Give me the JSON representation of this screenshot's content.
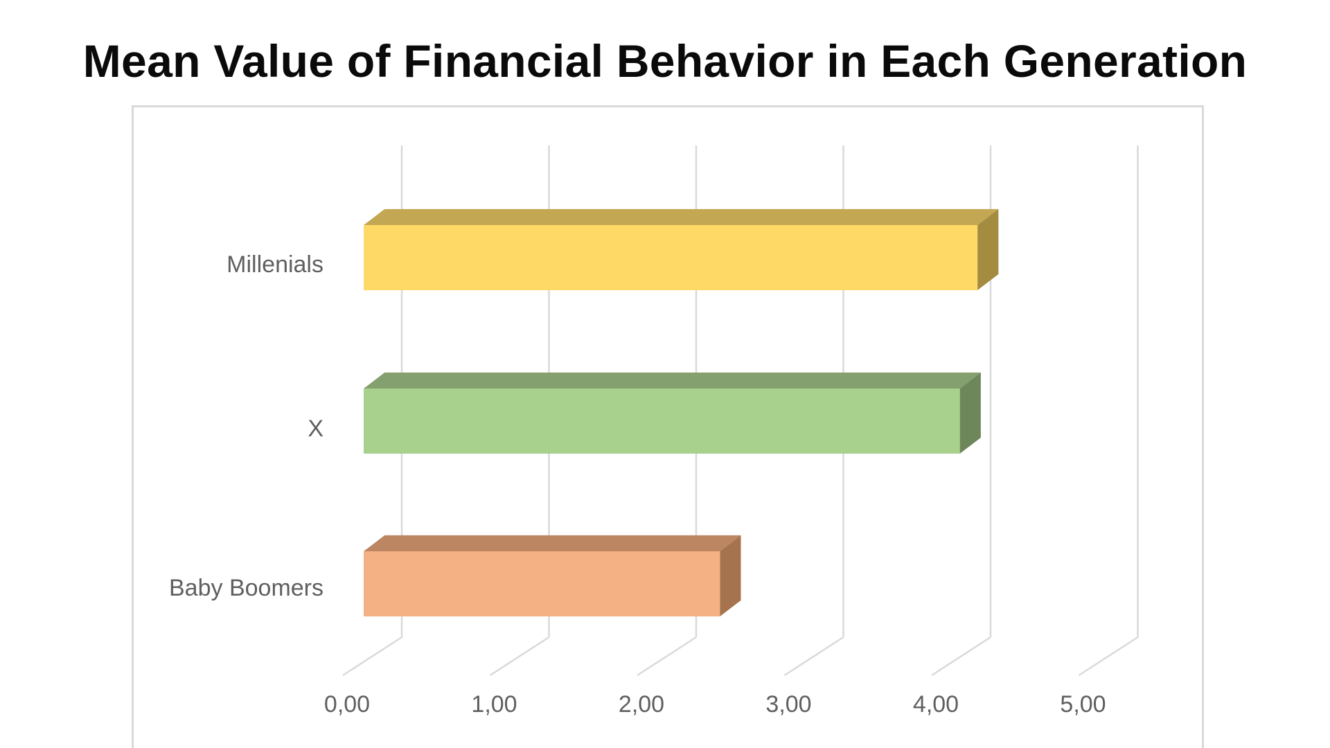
{
  "chart_data": {
    "type": "bar",
    "orientation": "horizontal",
    "style": "3d",
    "title": "Mean Value of Financial Behavior in Each Generation",
    "categories": [
      "Millenials",
      "X",
      "Baby Boomers"
    ],
    "values": [
      4.17,
      4.05,
      2.42
    ],
    "tick_labels": [
      "0,00",
      "1,00",
      "2,00",
      "3,00",
      "4,00",
      "5,00"
    ],
    "xlim": [
      0,
      5
    ],
    "xlabel": "",
    "ylabel": "",
    "grid": true,
    "legend": "none",
    "colors": {
      "Millenials": {
        "front": "#ffd966",
        "top": "#c4a752",
        "side": "#a38c40"
      },
      "X": {
        "front": "#a9d18e",
        "top": "#84a06e",
        "side": "#6e875a"
      },
      "Baby Boomers": {
        "front": "#f4b183",
        "top": "#bc8663",
        "side": "#a6734f"
      },
      "grid": "#d9d9d9"
    }
  }
}
